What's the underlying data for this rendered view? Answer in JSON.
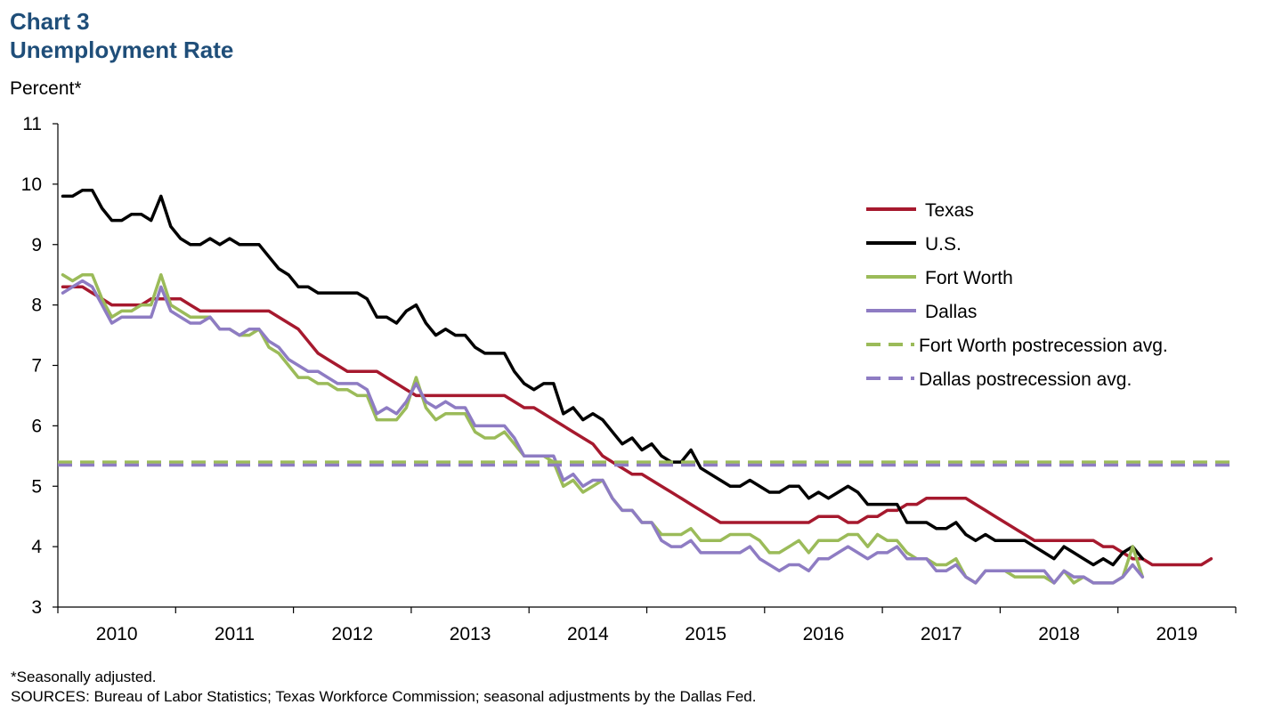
{
  "header": {
    "chart_number": "Chart 3",
    "title": "Unemployment Rate"
  },
  "footnotes": {
    "note": "*Seasonally adjusted.",
    "sources": "SOURCES:  Bureau of Labor Statistics; Texas Workforce Commission;  seasonal adjustments by the Dallas Fed."
  },
  "chart_data": {
    "type": "line",
    "ylabel": "Percent*",
    "ylim": [
      3,
      11
    ],
    "yticks": [
      3,
      4,
      5,
      6,
      7,
      8,
      9,
      10,
      11
    ],
    "x_range": [
      "2009-07",
      "2019-06"
    ],
    "x_tick_labels": [
      "2010",
      "2011",
      "2012",
      "2013",
      "2014",
      "2015",
      "2016",
      "2017",
      "2018",
      "2019"
    ],
    "legend_position": "right",
    "grid": false,
    "series": [
      {
        "name": "Texas",
        "color": "#a6192e",
        "style": "solid",
        "start": "2009-07",
        "values": [
          8.3,
          8.3,
          8.3,
          8.2,
          8.1,
          8.0,
          8.0,
          8.0,
          8.0,
          8.1,
          8.1,
          8.1,
          8.1,
          8.0,
          7.9,
          7.9,
          7.9,
          7.9,
          7.9,
          7.9,
          7.9,
          7.9,
          7.8,
          7.7,
          7.6,
          7.4,
          7.2,
          7.1,
          7.0,
          6.9,
          6.9,
          6.9,
          6.9,
          6.8,
          6.7,
          6.6,
          6.5,
          6.5,
          6.5,
          6.5,
          6.5,
          6.5,
          6.5,
          6.5,
          6.5,
          6.5,
          6.4,
          6.3,
          6.3,
          6.2,
          6.1,
          6.0,
          5.9,
          5.8,
          5.7,
          5.5,
          5.4,
          5.3,
          5.2,
          5.2,
          5.1,
          5.0,
          4.9,
          4.8,
          4.7,
          4.6,
          4.5,
          4.4,
          4.4,
          4.4,
          4.4,
          4.4,
          4.4,
          4.4,
          4.4,
          4.4,
          4.4,
          4.5,
          4.5,
          4.5,
          4.4,
          4.4,
          4.5,
          4.5,
          4.6,
          4.6,
          4.7,
          4.7,
          4.8,
          4.8,
          4.8,
          4.8,
          4.8,
          4.7,
          4.6,
          4.5,
          4.4,
          4.3,
          4.2,
          4.1,
          4.1,
          4.1,
          4.1,
          4.1,
          4.1,
          4.1,
          4.0,
          4.0,
          3.9,
          3.8,
          3.8,
          3.7,
          3.7,
          3.7,
          3.7,
          3.7,
          3.7,
          3.8
        ]
      },
      {
        "name": "U.S.",
        "color": "#000000",
        "style": "solid",
        "start": "2009-07",
        "values": [
          9.8,
          9.8,
          9.9,
          9.9,
          9.6,
          9.4,
          9.4,
          9.5,
          9.5,
          9.4,
          9.8,
          9.3,
          9.1,
          9.0,
          9.0,
          9.1,
          9.0,
          9.1,
          9.0,
          9.0,
          9.0,
          8.8,
          8.6,
          8.5,
          8.3,
          8.3,
          8.2,
          8.2,
          8.2,
          8.2,
          8.2,
          8.1,
          7.8,
          7.8,
          7.7,
          7.9,
          8.0,
          7.7,
          7.5,
          7.6,
          7.5,
          7.5,
          7.3,
          7.2,
          7.2,
          7.2,
          6.9,
          6.7,
          6.6,
          6.7,
          6.7,
          6.2,
          6.3,
          6.1,
          6.2,
          6.1,
          5.9,
          5.7,
          5.8,
          5.6,
          5.7,
          5.5,
          5.4,
          5.4,
          5.6,
          5.3,
          5.2,
          5.1,
          5.0,
          5.0,
          5.1,
          5.0,
          4.9,
          4.9,
          5.0,
          5.0,
          4.8,
          4.9,
          4.8,
          4.9,
          5.0,
          4.9,
          4.7,
          4.7,
          4.7,
          4.7,
          4.4,
          4.4,
          4.4,
          4.3,
          4.3,
          4.4,
          4.2,
          4.1,
          4.2,
          4.1,
          4.1,
          4.1,
          4.1,
          4.0,
          3.9,
          3.8,
          4.0,
          3.9,
          3.8,
          3.7,
          3.8,
          3.7,
          3.9,
          4.0,
          3.8
        ]
      },
      {
        "name": "Fort Worth",
        "color": "#9bbb59",
        "style": "solid",
        "start": "2009-07",
        "values": [
          8.5,
          8.4,
          8.5,
          8.5,
          8.1,
          7.8,
          7.9,
          7.9,
          8.0,
          8.0,
          8.5,
          8.0,
          7.9,
          7.8,
          7.8,
          7.8,
          7.6,
          7.6,
          7.5,
          7.5,
          7.6,
          7.3,
          7.2,
          7.0,
          6.8,
          6.8,
          6.7,
          6.7,
          6.6,
          6.6,
          6.5,
          6.5,
          6.1,
          6.1,
          6.1,
          6.3,
          6.8,
          6.3,
          6.1,
          6.2,
          6.2,
          6.2,
          5.9,
          5.8,
          5.8,
          5.9,
          5.7,
          5.5,
          5.5,
          5.5,
          5.4,
          5.0,
          5.1,
          4.9,
          5.0,
          5.1,
          4.8,
          4.6,
          4.6,
          4.4,
          4.4,
          4.2,
          4.2,
          4.2,
          4.3,
          4.1,
          4.1,
          4.1,
          4.2,
          4.2,
          4.2,
          4.1,
          3.9,
          3.9,
          4.0,
          4.1,
          3.9,
          4.1,
          4.1,
          4.1,
          4.2,
          4.2,
          4.0,
          4.2,
          4.1,
          4.1,
          3.9,
          3.8,
          3.8,
          3.7,
          3.7,
          3.8,
          3.5,
          3.4,
          3.6,
          3.6,
          3.6,
          3.5,
          3.5,
          3.5,
          3.5,
          3.4,
          3.6,
          3.4,
          3.5,
          3.4,
          3.4,
          3.4,
          3.5,
          4.0,
          3.5
        ]
      },
      {
        "name": "Dallas",
        "color": "#8e7cc3",
        "style": "solid",
        "start": "2009-07",
        "values": [
          8.2,
          8.3,
          8.4,
          8.3,
          8.0,
          7.7,
          7.8,
          7.8,
          7.8,
          7.8,
          8.3,
          7.9,
          7.8,
          7.7,
          7.7,
          7.8,
          7.6,
          7.6,
          7.5,
          7.6,
          7.6,
          7.4,
          7.3,
          7.1,
          7.0,
          6.9,
          6.9,
          6.8,
          6.7,
          6.7,
          6.7,
          6.6,
          6.2,
          6.3,
          6.2,
          6.4,
          6.7,
          6.4,
          6.3,
          6.4,
          6.3,
          6.3,
          6.0,
          6.0,
          6.0,
          6.0,
          5.8,
          5.5,
          5.5,
          5.5,
          5.5,
          5.1,
          5.2,
          5.0,
          5.1,
          5.1,
          4.8,
          4.6,
          4.6,
          4.4,
          4.4,
          4.1,
          4.0,
          4.0,
          4.1,
          3.9,
          3.9,
          3.9,
          3.9,
          3.9,
          4.0,
          3.8,
          3.7,
          3.6,
          3.7,
          3.7,
          3.6,
          3.8,
          3.8,
          3.9,
          4.0,
          3.9,
          3.8,
          3.9,
          3.9,
          4.0,
          3.8,
          3.8,
          3.8,
          3.6,
          3.6,
          3.7,
          3.5,
          3.4,
          3.6,
          3.6,
          3.6,
          3.6,
          3.6,
          3.6,
          3.6,
          3.4,
          3.6,
          3.5,
          3.5,
          3.4,
          3.4,
          3.4,
          3.5,
          3.7,
          3.5
        ]
      },
      {
        "name": "Fort Worth postrecession avg.",
        "color": "#9bbb59",
        "style": "dashed",
        "constant": 5.4
      },
      {
        "name": "Dallas postrecession avg.",
        "color": "#8e7cc3",
        "style": "dashed",
        "constant": 5.35
      }
    ]
  }
}
